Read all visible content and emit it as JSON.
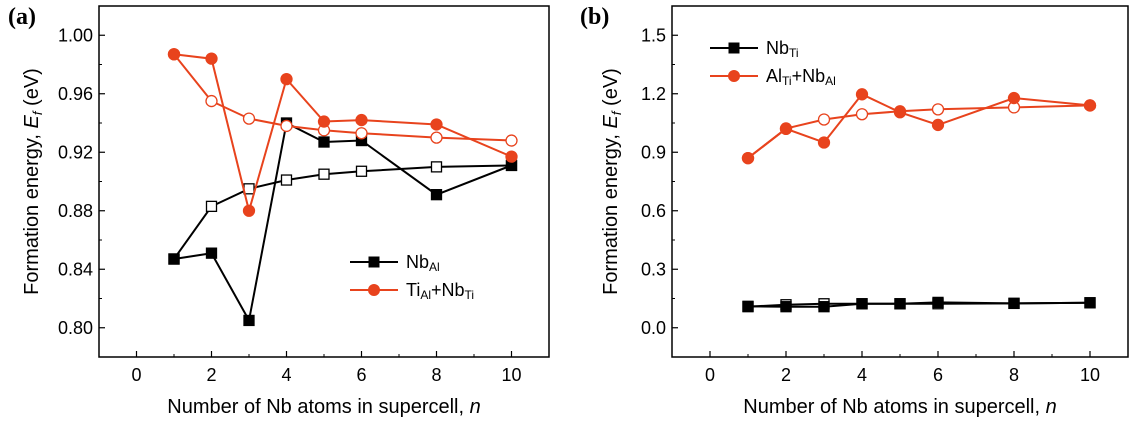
{
  "chart_data": [
    {
      "panel": "(a)",
      "type": "line",
      "xlabel": "Number of Nb atoms in supercell, ",
      "xlabel_var": "n",
      "ylabel": "Formation energy, ",
      "ylabel_var": "E",
      "ylabel_sub": "f",
      "ylabel_unit": " (eV)",
      "xlim": [
        -1,
        11
      ],
      "ylim": [
        0.78,
        1.02
      ],
      "xticks": [
        0,
        2,
        4,
        6,
        8,
        10
      ],
      "yticks": [
        0.8,
        0.84,
        0.88,
        0.92,
        0.96,
        1.0
      ],
      "ytick_labels": [
        "0.80",
        "0.84",
        "0.88",
        "0.92",
        "0.96",
        "1.00"
      ],
      "legend_position": "lower-right",
      "series": [
        {
          "name": "Nb",
          "name_sub": "Al",
          "color": "#000000",
          "marker": "square",
          "x": [
            1,
            2,
            3,
            4,
            5,
            6,
            8,
            10
          ],
          "filled": [
            0.847,
            0.851,
            0.805,
            0.94,
            0.927,
            0.928,
            0.891,
            0.911
          ],
          "hollow": [
            0.847,
            0.883,
            0.895,
            0.901,
            0.905,
            0.907,
            0.91,
            0.911
          ]
        },
        {
          "name": "Ti",
          "name_sub": "Al",
          "name2": "+Nb",
          "name2_sub": "Ti",
          "color": "#e8431d",
          "marker": "circle",
          "x": [
            1,
            2,
            3,
            4,
            5,
            6,
            8,
            10
          ],
          "filled": [
            0.987,
            0.984,
            0.88,
            0.97,
            0.941,
            0.942,
            0.939,
            0.917
          ],
          "hollow": [
            0.987,
            0.955,
            0.943,
            0.938,
            0.935,
            0.933,
            0.93,
            0.928
          ]
        }
      ]
    },
    {
      "panel": "(b)",
      "type": "line",
      "xlabel": "Number of Nb atoms in supercell, ",
      "xlabel_var": "n",
      "ylabel": "Formation energy, ",
      "ylabel_var": "E",
      "ylabel_sub": "f",
      "ylabel_unit": " (eV)",
      "xlim": [
        -1,
        11
      ],
      "ylim": [
        -0.15,
        1.65
      ],
      "xticks": [
        0,
        2,
        4,
        6,
        8,
        10
      ],
      "yticks": [
        0.0,
        0.3,
        0.6,
        0.9,
        1.2,
        1.5
      ],
      "ytick_labels": [
        "0.0",
        "0.3",
        "0.6",
        "0.9",
        "1.2",
        "1.5"
      ],
      "legend_position": "top-left",
      "series": [
        {
          "name": "Nb",
          "name_sub": "Ti",
          "color": "#000000",
          "marker": "square",
          "x": [
            1,
            2,
            3,
            4,
            5,
            6,
            8,
            10
          ],
          "filled": [
            0.11,
            0.108,
            0.108,
            0.123,
            0.123,
            0.13,
            0.125,
            0.128
          ],
          "hollow": [
            0.108,
            0.118,
            0.123,
            0.123,
            0.123,
            0.123,
            0.125,
            0.128
          ]
        },
        {
          "name": "Al",
          "name_sub": "Ti",
          "name2": "+Nb",
          "name2_sub": "Al",
          "color": "#e8431d",
          "marker": "circle",
          "x": [
            1,
            2,
            3,
            4,
            5,
            6,
            8,
            10
          ],
          "filled": [
            0.87,
            1.02,
            0.95,
            1.197,
            1.105,
            1.04,
            1.178,
            1.14
          ],
          "hollow": [
            0.87,
            1.022,
            1.068,
            1.095,
            1.11,
            1.12,
            1.13,
            1.14
          ]
        }
      ]
    }
  ]
}
